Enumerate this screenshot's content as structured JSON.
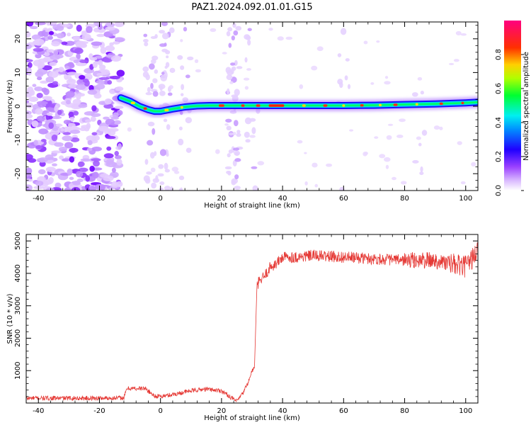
{
  "title": "PAZ1.2024.092.01.01.G15",
  "colors": {
    "snr_line": "#e53935",
    "noise_purple": "#7b2cf0",
    "ridge_cyan": "#00e5d0"
  },
  "chart_data": [
    {
      "type": "heatmap",
      "xlabel": "Height of straight line (km)",
      "ylabel": "Frequency (Hz)",
      "xlim": [
        -44,
        104
      ],
      "ylim": [
        -25,
        25
      ],
      "x_ticks": [
        -40,
        -20,
        0,
        20,
        40,
        60,
        80,
        100
      ],
      "y_ticks": [
        -20,
        -10,
        0,
        10,
        20
      ],
      "colorbar": {
        "label": "Normalized spectral amplitude",
        "ticks": [
          "0.0",
          "0.2",
          "0.4",
          "0.6",
          "0.8"
        ],
        "range": [
          0,
          1
        ],
        "colormap": [
          "#ffffff",
          "#c080ff",
          "#6000ff",
          "#0000ff",
          "#00e0ff",
          "#00ff40",
          "#e0ff00",
          "#ff4000",
          "#ff0080"
        ]
      },
      "ridge": {
        "x": [
          -13,
          -10,
          -7,
          -4,
          -2,
          0,
          4,
          8,
          12,
          16,
          20,
          30,
          40,
          50,
          60,
          70,
          80,
          90,
          100,
          104
        ],
        "y": [
          2.5,
          1.5,
          0,
          -1,
          -1.5,
          -1.5,
          -0.8,
          -0.2,
          0.1,
          0.2,
          0.2,
          0.2,
          0.2,
          0.2,
          0.2,
          0.3,
          0.5,
          0.7,
          1,
          1.2
        ]
      },
      "noise_region_x": [
        -44,
        -13
      ]
    },
    {
      "type": "line",
      "xlabel": "Height of straight line (km)",
      "ylabel": "SNR (10 * v/v)",
      "xlim": [
        -44,
        104
      ],
      "ylim": [
        0,
        5200
      ],
      "x_ticks": [
        -40,
        -20,
        0,
        20,
        40,
        60,
        80,
        100
      ],
      "y_ticks": [
        1000,
        2000,
        3000,
        4000,
        5000
      ],
      "series": [
        {
          "x": [
            -44,
            -30,
            -20,
            -12,
            -11,
            -5,
            -2,
            0,
            5,
            10,
            15,
            20,
            25,
            27,
            29,
            30,
            31,
            31.5,
            32,
            34,
            36,
            38,
            40,
            45,
            50,
            60,
            70,
            80,
            90,
            95,
            100,
            104
          ],
          "values": [
            150,
            150,
            150,
            160,
            450,
            450,
            220,
            200,
            280,
            380,
            430,
            380,
            50,
            300,
            700,
            1000,
            1100,
            3500,
            3700,
            3900,
            4200,
            4300,
            4500,
            4500,
            4550,
            4500,
            4450,
            4400,
            4400,
            4300,
            4200,
            4700
          ]
        }
      ]
    }
  ]
}
